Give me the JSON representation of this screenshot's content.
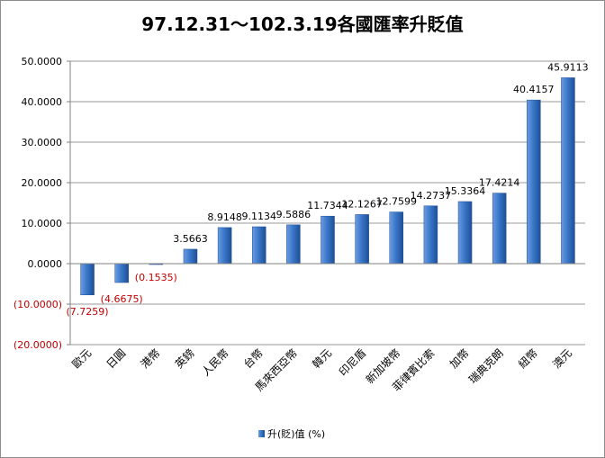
{
  "chart_data": {
    "type": "bar",
    "title": "97.12.31～102.3.19各國匯率升貶值",
    "xlabel": "",
    "ylabel": "",
    "ylim": [
      -20,
      50
    ],
    "yticks": [
      50,
      40,
      30,
      20,
      10,
      0,
      -10,
      -20
    ],
    "ytick_labels": [
      "50.0000",
      "40.0000",
      "30.0000",
      "20.0000",
      "10.0000",
      "0.0000",
      "(10.0000)",
      "(20.0000)"
    ],
    "grid": true,
    "legend_position": "bottom",
    "categories": [
      "歐元",
      "日圓",
      "港幣",
      "英鎊",
      "人民幣",
      "台幣",
      "馬來西亞幣",
      "韓元",
      "印尼盾",
      "新加坡幣",
      "菲律賓比索",
      "加幣",
      "瑞典克朗",
      "紐幣",
      "澳元"
    ],
    "series": [
      {
        "name": "升(貶)值  (%)",
        "color": "#2f6db5",
        "values": [
          -7.7259,
          -4.6675,
          -0.1535,
          3.5663,
          8.9148,
          9.1134,
          9.5886,
          11.7344,
          12.1267,
          12.7599,
          14.2737,
          15.3364,
          17.4214,
          40.4157,
          45.9113
        ],
        "labels": [
          "(7.7259)",
          "(4.6675)",
          "(0.1535)",
          "3.5663",
          "8.9148",
          "9.1134",
          "9.5886",
          "11.7344",
          "12.1267",
          "12.7599",
          "14.2737",
          "15.3364",
          "17.4214",
          "40.4157",
          "45.9113"
        ]
      }
    ],
    "negative_label_color": "#c00000",
    "positive_label_color": "#000000"
  }
}
